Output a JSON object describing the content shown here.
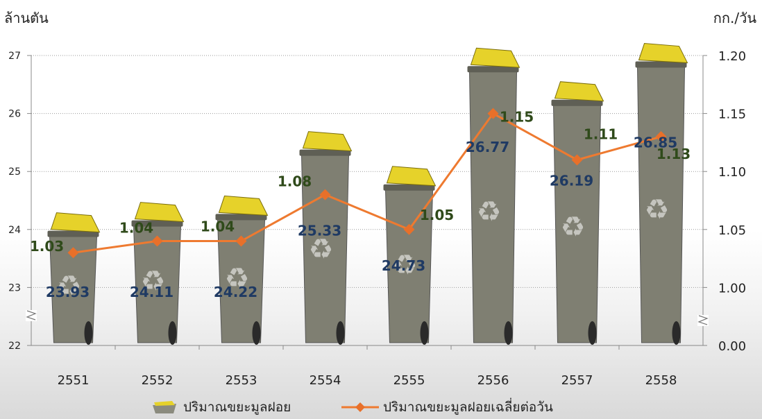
{
  "chart_data": {
    "type": "bar",
    "categories": [
      "2551",
      "2552",
      "2553",
      "2554",
      "2555",
      "2556",
      "2557",
      "2558"
    ],
    "series": [
      {
        "name": "ปริมาณขยะมูลฝอย",
        "type": "bar",
        "axis": "left",
        "values": [
          23.93,
          24.11,
          24.22,
          25.33,
          24.73,
          26.77,
          26.19,
          26.85
        ]
      },
      {
        "name": "ปริมาณขยะมูลฝอยเฉลี่ยต่อวัน",
        "type": "line",
        "axis": "right",
        "values": [
          1.03,
          1.04,
          1.04,
          1.08,
          1.05,
          1.15,
          1.11,
          1.13
        ]
      }
    ],
    "left_axis": {
      "label": "ล้านตัน",
      "ticks": [
        "22",
        "23",
        "24",
        "25",
        "26",
        "27"
      ],
      "ylim": [
        22,
        27
      ],
      "axis_break": true
    },
    "right_axis": {
      "label": "กก./วัน",
      "ticks": [
        "0.00",
        "1.00",
        "1.05",
        "1.10",
        "1.15",
        "1.20"
      ],
      "ylim": [
        0.95,
        1.2
      ],
      "axis_break": true
    },
    "grid": "horizontal-dotted",
    "legend_position": "bottom",
    "colors": {
      "bar_body": "#7f7f72",
      "bar_lid": "#e6d22a",
      "line": "#ee7a30",
      "marker": "#e8702a",
      "bar_label": "#1f3a63",
      "line_label": "#2f4a1a"
    }
  }
}
